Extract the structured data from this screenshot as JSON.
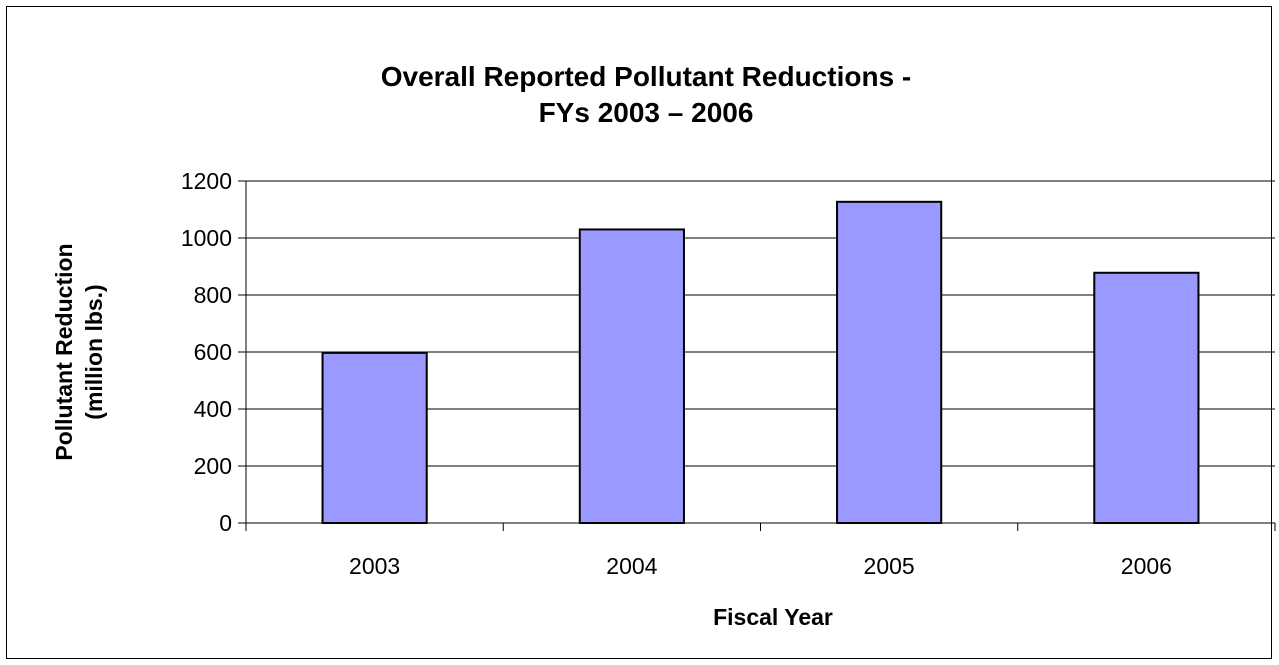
{
  "chart_data": {
    "type": "bar",
    "title_lines": [
      "Overall Reported Pollutant Reductions -",
      "FYs 2003 – 2006"
    ],
    "xlabel": "Fiscal Year",
    "ylabel_lines": [
      "Pollutant Reduction",
      "(million lbs.)"
    ],
    "categories": [
      "2003",
      "2004",
      "2005",
      "2006"
    ],
    "values": [
      597,
      1030,
      1127,
      878
    ],
    "ylim": [
      0,
      1200
    ],
    "yticks": [
      "0",
      "200",
      "400",
      "600",
      "800",
      "1000",
      "1200"
    ],
    "grid": true,
    "legend": "none",
    "colors": {
      "bar_fill": "#9999ff",
      "bar_stroke": "#000000",
      "grid": "#000000"
    }
  }
}
